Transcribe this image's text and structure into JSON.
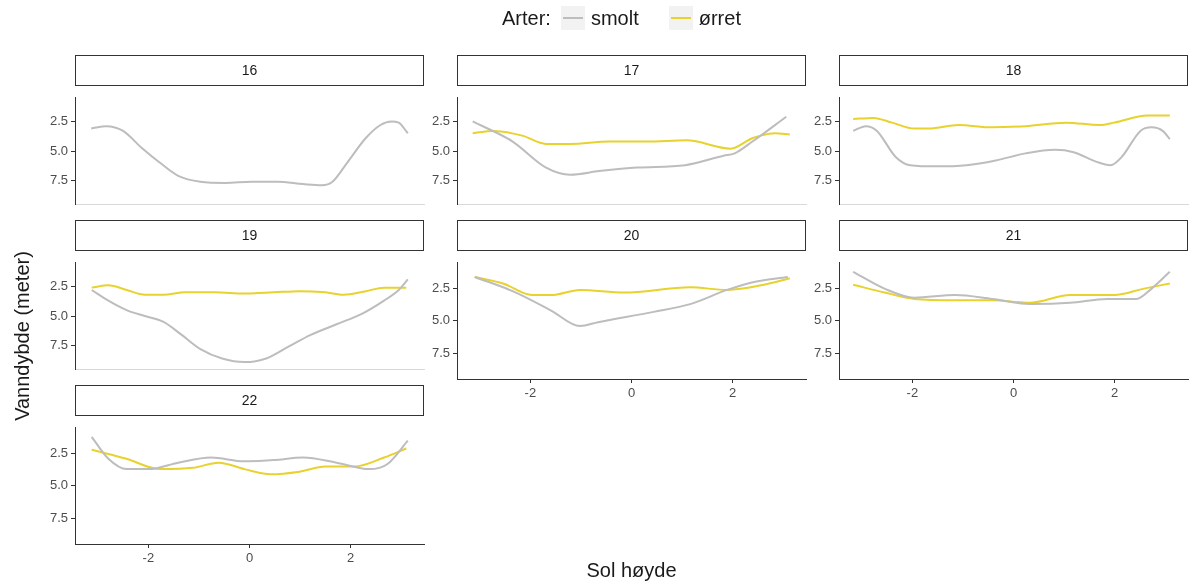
{
  "chart_data": [
    {
      "type": "line",
      "title": "16",
      "xlim": [
        -3.45,
        3.45
      ],
      "xticks": [
        -2,
        0,
        2
      ],
      "ylim": [
        9.5,
        0.5
      ],
      "yticks": [
        {
          "value": 2.5,
          "label": "2.5"
        },
        {
          "value": 5,
          "label": "5.0"
        },
        {
          "value": 7.5,
          "label": "7.5"
        }
      ],
      "tick_labels": "y",
      "series": [
        {
          "color": "#bdbdbd",
          "x": [
            -3.13,
            -2.83,
            -2.5,
            -2.14,
            -1.77,
            -1.41,
            -0.97,
            -0.47,
            0.04,
            0.55,
            1.06,
            1.43,
            1.64,
            1.93,
            2.3,
            2.59,
            2.81,
            2.95,
            3.13
          ],
          "values": [
            3.1,
            2.9,
            3.3,
            4.7,
            6.0,
            7.1,
            7.6,
            7.7,
            7.6,
            7.6,
            7.8,
            7.9,
            7.6,
            6.0,
            3.9,
            2.8,
            2.5,
            2.6,
            3.5
          ]
        }
      ]
    },
    {
      "type": "line",
      "title": "17",
      "legend_title": "Arter:",
      "legend": "top",
      "xlim": [
        -3.45,
        3.45
      ],
      "xticks": [
        -2,
        0,
        2
      ],
      "ylim": [
        9.5,
        0.5
      ],
      "yticks": [
        {
          "value": 2.5,
          "label": "2.5"
        },
        {
          "value": 5,
          "label": "5.0"
        },
        {
          "value": 7.5,
          "label": "7.5"
        }
      ],
      "tick_labels": "y",
      "series": [
        {
          "name": "smolt",
          "color": "#bdbdbd",
          "x": [
            -3.14,
            -2.35,
            -1.69,
            -1.21,
            -0.64,
            0.11,
            1.06,
            1.82,
            2.04,
            2.39,
            3.06
          ],
          "values": [
            2.5,
            4.2,
            6.4,
            7.0,
            6.7,
            6.4,
            6.2,
            5.4,
            5.2,
            4.2,
            2.1
          ]
        },
        {
          "name": "ørret",
          "color": "#e8d22e",
          "x": [
            -3.14,
            -2.73,
            -2.16,
            -1.69,
            -1.21,
            -0.45,
            0.3,
            1.09,
            1.96,
            2.4,
            2.84,
            3.13
          ],
          "values": [
            3.5,
            3.3,
            3.7,
            4.4,
            4.4,
            4.2,
            4.2,
            4.1,
            4.8,
            3.9,
            3.5,
            3.6
          ]
        }
      ]
    },
    {
      "type": "line",
      "title": "18",
      "xlim": [
        -3.45,
        3.45
      ],
      "xticks": [
        -2,
        0,
        2
      ],
      "ylim": [
        9.5,
        0.5
      ],
      "yticks": [
        {
          "value": 2.5,
          "label": "2.5"
        },
        {
          "value": 5,
          "label": "5.0"
        },
        {
          "value": 7.5,
          "label": "7.5"
        }
      ],
      "tick_labels": "y",
      "series": [
        {
          "color": "#bdbdbd",
          "x": [
            -3.17,
            -2.92,
            -2.7,
            -2.33,
            -2.04,
            -1.52,
            -0.93,
            -0.35,
            0.24,
            0.82,
            1.19,
            1.63,
            1.92,
            2.14,
            2.51,
            2.73,
            2.95,
            3.09
          ],
          "values": [
            3.3,
            2.9,
            3.3,
            5.5,
            6.2,
            6.3,
            6.2,
            5.8,
            5.2,
            4.9,
            5.1,
            5.9,
            6.2,
            5.5,
            3.3,
            3.0,
            3.3,
            4.0
          ]
        },
        {
          "color": "#e8d22e",
          "x": [
            -3.17,
            -2.77,
            -2.4,
            -1.96,
            -1.67,
            -1.09,
            -0.42,
            0.24,
            1.04,
            1.7,
            1.99,
            2.65,
            3.09
          ],
          "values": [
            2.3,
            2.2,
            2.6,
            3.1,
            3.1,
            2.8,
            3.0,
            2.9,
            2.6,
            2.8,
            2.6,
            2.0,
            2.0
          ]
        }
      ]
    },
    {
      "type": "line",
      "title": "19",
      "ylabel": "Vanndybde (meter)",
      "xlim": [
        -3.45,
        3.45
      ],
      "xticks": [
        -2,
        0,
        2
      ],
      "ylim": [
        9.5,
        0.5
      ],
      "yticks": [
        {
          "value": 2.5,
          "label": "2.5"
        },
        {
          "value": 5,
          "label": "5.0"
        },
        {
          "value": 7.5,
          "label": "7.5"
        }
      ],
      "tick_labels": "y",
      "series": [
        {
          "color": "#bdbdbd",
          "x": [
            -3.12,
            -2.79,
            -2.43,
            -2.07,
            -1.7,
            -1.34,
            -0.97,
            -0.54,
            -0.1,
            0.33,
            0.77,
            1.21,
            1.72,
            2.23,
            2.66,
            2.95,
            3.13
          ],
          "values": [
            2.8,
            3.7,
            4.5,
            5.0,
            5.5,
            6.6,
            7.8,
            8.6,
            8.9,
            8.6,
            7.6,
            6.6,
            5.7,
            4.8,
            3.7,
            2.8,
            1.9
          ]
        },
        {
          "color": "#e8d22e",
          "x": [
            -3.12,
            -2.79,
            -2.43,
            -2.07,
            -1.7,
            -1.27,
            -0.68,
            -0.1,
            0.48,
            0.99,
            1.5,
            1.86,
            2.3,
            2.66,
            3.1
          ],
          "values": [
            2.6,
            2.4,
            2.8,
            3.2,
            3.2,
            3.0,
            3.0,
            3.1,
            3.0,
            2.9,
            3.0,
            3.2,
            2.9,
            2.6,
            2.6
          ]
        }
      ]
    },
    {
      "type": "line",
      "title": "20",
      "xlabel": "Sol høyde",
      "xlim": [
        -3.45,
        3.45
      ],
      "xticks": [
        -2,
        0,
        2
      ],
      "ylim": [
        9.5,
        0.5
      ],
      "yticks": [
        {
          "value": 2.5,
          "label": "2.5"
        },
        {
          "value": 5,
          "label": "5.0"
        },
        {
          "value": 7.5,
          "label": "7.5"
        }
      ],
      "series": [
        {
          "color": "#bdbdbd",
          "x": [
            -3.1,
            -2.35,
            -1.59,
            -1.02,
            -0.66,
            0.44,
            1.16,
            1.89,
            2.4,
            3.09
          ],
          "values": [
            1.6,
            2.7,
            4.2,
            5.4,
            5.1,
            4.3,
            3.7,
            2.6,
            2.0,
            1.6
          ]
        },
        {
          "color": "#e8d22e",
          "x": [
            -3.1,
            -2.54,
            -1.97,
            -1.59,
            -1.02,
            -0.15,
            1.16,
            1.89,
            2.62,
            3.13
          ],
          "values": [
            1.6,
            2.1,
            3.0,
            3.0,
            2.6,
            2.8,
            2.4,
            2.6,
            2.2,
            1.7
          ]
        }
      ]
    },
    {
      "type": "line",
      "title": "21",
      "xlim": [
        -3.45,
        3.45
      ],
      "xticks": [
        -2,
        0,
        2
      ],
      "ylim": [
        9.5,
        0.5
      ],
      "yticks": [
        {
          "value": 2.5,
          "label": "2.5"
        },
        {
          "value": 5,
          "label": "5.0"
        },
        {
          "value": 7.5,
          "label": "7.5"
        }
      ],
      "series": [
        {
          "color": "#bdbdbd",
          "x": [
            -3.17,
            -2.55,
            -1.96,
            -1.15,
            -0.42,
            0.38,
            1.12,
            1.85,
            2.43,
            2.73,
            3.09
          ],
          "values": [
            1.2,
            2.5,
            3.2,
            3.0,
            3.3,
            3.7,
            3.6,
            3.3,
            3.3,
            2.5,
            1.2
          ]
        },
        {
          "color": "#e8d22e",
          "x": [
            -3.17,
            -2.55,
            -1.96,
            -1.15,
            -0.42,
            0.31,
            1.12,
            1.99,
            2.58,
            3.09
          ],
          "values": [
            2.2,
            2.8,
            3.3,
            3.4,
            3.4,
            3.6,
            3.0,
            3.0,
            2.5,
            2.1
          ]
        }
      ]
    },
    {
      "type": "line",
      "title": "22",
      "xlim": [
        -3.45,
        3.45
      ],
      "xticks": [
        -2,
        0,
        2
      ],
      "ylim": [
        9.5,
        0.5
      ],
      "yticks": [
        {
          "value": 2.5,
          "label": "2.5"
        },
        {
          "value": 5,
          "label": "5.0"
        },
        {
          "value": 7.5,
          "label": "7.5"
        }
      ],
      "series": [
        {
          "color": "#bdbdbd",
          "x": [
            -3.12,
            -2.79,
            -2.43,
            -1.99,
            -1.41,
            -0.76,
            -0.1,
            0.48,
            1.06,
            1.72,
            2.37,
            2.73,
            3.13
          ],
          "values": [
            1.2,
            2.9,
            3.7,
            3.7,
            3.2,
            2.8,
            3.1,
            3.0,
            2.8,
            3.2,
            3.7,
            3.3,
            1.5
          ]
        },
        {
          "color": "#e8d22e",
          "x": [
            -3.12,
            -2.43,
            -1.77,
            -1.12,
            -0.61,
            -0.1,
            0.41,
            0.99,
            1.5,
            2.08,
            2.66,
            3.1
          ],
          "values": [
            2.2,
            2.9,
            3.7,
            3.6,
            3.2,
            3.7,
            4.1,
            3.9,
            3.5,
            3.5,
            2.8,
            2.1
          ]
        }
      ]
    }
  ]
}
